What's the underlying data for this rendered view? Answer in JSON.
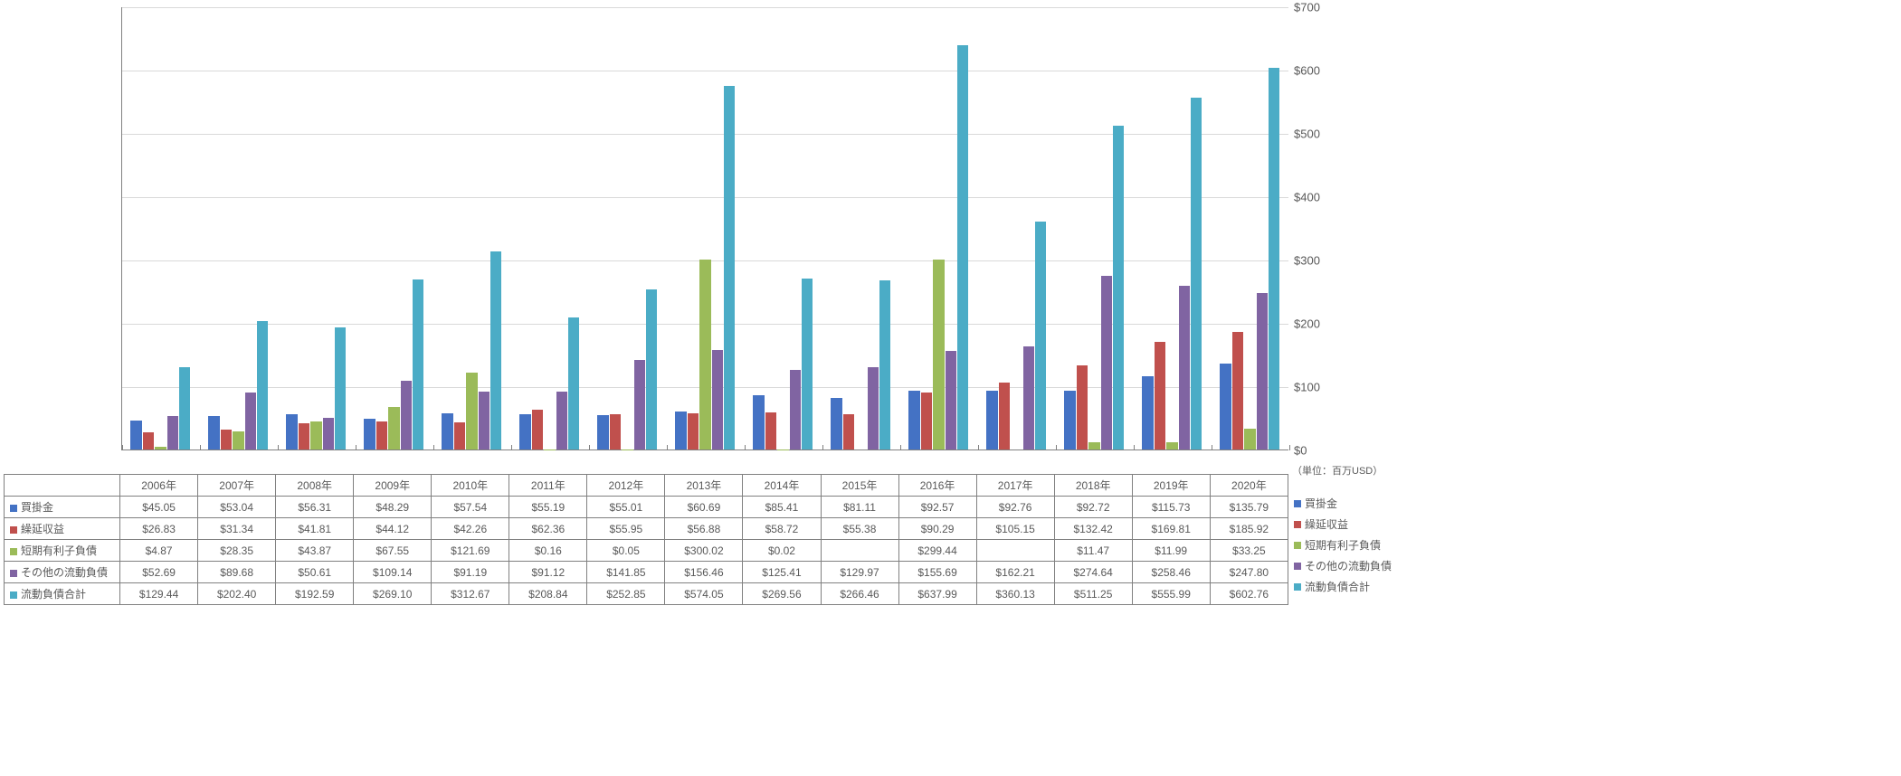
{
  "chart": {
    "type": "bar",
    "categories": [
      "2006年",
      "2007年",
      "2008年",
      "2009年",
      "2010年",
      "2011年",
      "2012年",
      "2013年",
      "2014年",
      "2015年",
      "2016年",
      "2017年",
      "2018年",
      "2019年",
      "2020年"
    ],
    "ylim": [
      0,
      700
    ],
    "ytick_step": 100,
    "yticks": [
      "$0",
      "$100",
      "$200",
      "$300",
      "$400",
      "$500",
      "$600",
      "$700"
    ],
    "unit_label": "（単位：百万USD）",
    "grid_color": "#d9d9d9",
    "axis_color": "#808080",
    "bar_group_ratio": 0.78,
    "series": [
      {
        "key": "ap",
        "label": "買掛金",
        "color": "#4472c4",
        "values": [
          45.05,
          53.04,
          56.31,
          48.29,
          57.54,
          55.19,
          55.01,
          60.69,
          85.41,
          81.11,
          92.57,
          92.76,
          92.72,
          115.73,
          135.79
        ],
        "display": [
          "$45.05",
          "$53.04",
          "$56.31",
          "$48.29",
          "$57.54",
          "$55.19",
          "$55.01",
          "$60.69",
          "$85.41",
          "$81.11",
          "$92.57",
          "$92.76",
          "$92.72",
          "$115.73",
          "$135.79"
        ]
      },
      {
        "key": "deferred",
        "label": "繰延収益",
        "color": "#c0504d",
        "values": [
          26.83,
          31.34,
          41.81,
          44.12,
          42.26,
          62.36,
          55.95,
          56.88,
          58.72,
          55.38,
          90.29,
          105.15,
          132.42,
          169.81,
          185.92
        ],
        "display": [
          "$26.83",
          "$31.34",
          "$41.81",
          "$44.12",
          "$42.26",
          "$62.36",
          "$55.95",
          "$56.88",
          "$58.72",
          "$55.38",
          "$90.29",
          "$105.15",
          "$132.42",
          "$169.81",
          "$185.92"
        ]
      },
      {
        "key": "stdebt",
        "label": "短期有利子負債",
        "color": "#9bbb59",
        "values": [
          4.87,
          28.35,
          43.87,
          67.55,
          121.69,
          0.16,
          0.05,
          300.02,
          0.02,
          null,
          299.44,
          null,
          11.47,
          11.99,
          33.25
        ],
        "display": [
          "$4.87",
          "$28.35",
          "$43.87",
          "$67.55",
          "$121.69",
          "$0.16",
          "$0.05",
          "$300.02",
          "$0.02",
          "",
          "$299.44",
          "",
          "$11.47",
          "$11.99",
          "$33.25"
        ]
      },
      {
        "key": "other",
        "label": "その他の流動負債",
        "color": "#8064a2",
        "values": [
          52.69,
          89.68,
          50.61,
          109.14,
          91.19,
          91.12,
          141.85,
          156.46,
          125.41,
          129.97,
          155.69,
          162.21,
          274.64,
          258.46,
          247.8
        ],
        "display": [
          "$52.69",
          "$89.68",
          "$50.61",
          "$109.14",
          "$91.19",
          "$91.12",
          "$141.85",
          "$156.46",
          "$125.41",
          "$129.97",
          "$155.69",
          "$162.21",
          "$274.64",
          "$258.46",
          "$247.80"
        ]
      },
      {
        "key": "total",
        "label": "流動負債合計",
        "color": "#4bacc6",
        "values": [
          129.44,
          202.4,
          192.59,
          269.1,
          312.67,
          208.84,
          252.85,
          574.05,
          269.56,
          266.46,
          637.99,
          360.13,
          511.25,
          555.99,
          602.76
        ],
        "display": [
          "$129.44",
          "$202.40",
          "$192.59",
          "$269.10",
          "$312.67",
          "$208.84",
          "$252.85",
          "$574.05",
          "$269.56",
          "$266.46",
          "$637.99",
          "$360.13",
          "$511.25",
          "$555.99",
          "$602.76"
        ]
      }
    ]
  }
}
